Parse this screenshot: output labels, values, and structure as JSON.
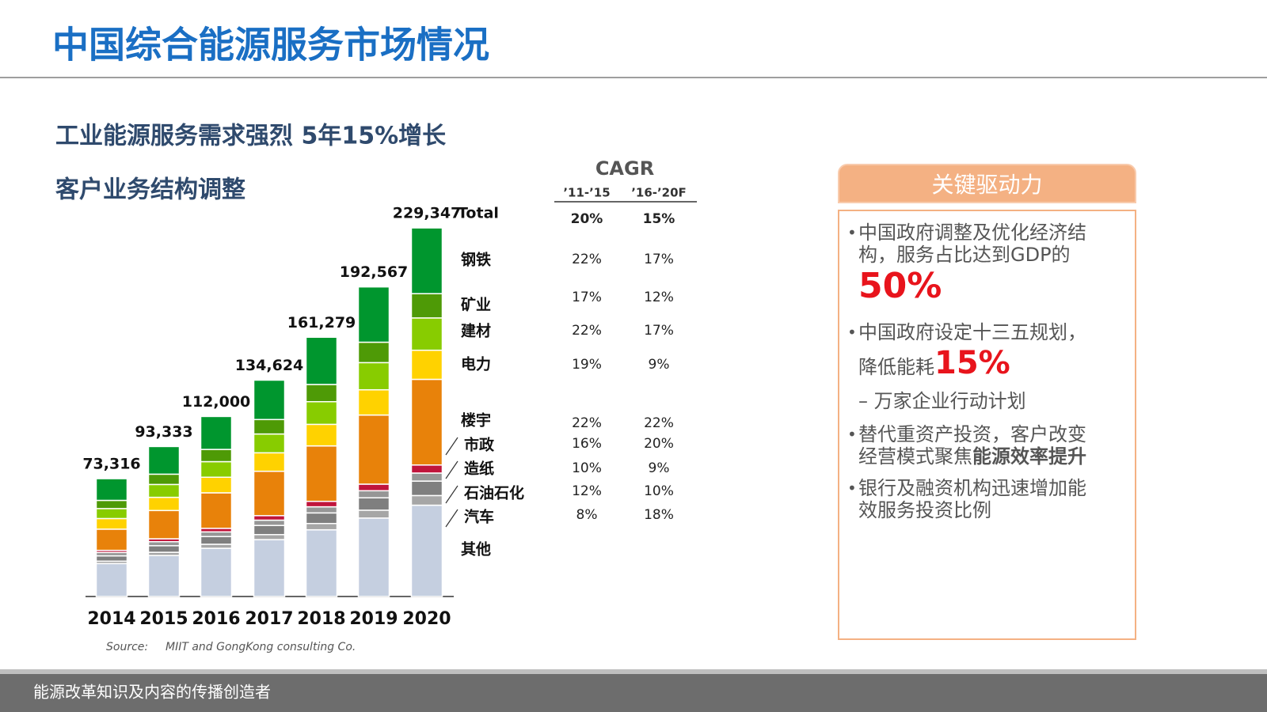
{
  "header": {
    "title": "中国综合能源服务市场情况",
    "subtitle1": "工业能源服务需求强烈 5年15%增长",
    "subtitle2": "客户业务结构调整"
  },
  "chart_data": {
    "type": "stacked_bar",
    "categories": [
      "2014",
      "2015",
      "2016",
      "2017",
      "2018",
      "2019",
      "2020"
    ],
    "series": [
      {
        "name": "其他",
        "color": "#c5cfe0",
        "values": [
          20500,
          25500,
          30000,
          35400,
          41500,
          48800,
          56800
        ]
      },
      {
        "name": "汽车",
        "color": "#a6a6a6",
        "values": [
          1500,
          2000,
          2500,
          3100,
          3900,
          4900,
          6000
        ]
      },
      {
        "name": "石油石化",
        "color": "#7f7f7f",
        "values": [
          3300,
          4100,
          4800,
          5700,
          6600,
          7700,
          9000
        ]
      },
      {
        "name": "造纸",
        "color": "#969696",
        "values": [
          2100,
          2500,
          2900,
          3300,
          3800,
          4400,
          5000
        ]
      },
      {
        "name": "市政",
        "color": "#c0143c",
        "values": [
          1300,
          1800,
          2200,
          2800,
          3400,
          4100,
          5000
        ]
      },
      {
        "name": "楼宇",
        "color": "#e8820a",
        "values": [
          13200,
          17600,
          22100,
          27600,
          34500,
          43000,
          53300
        ]
      },
      {
        "name": "电力",
        "color": "#ffd200",
        "values": [
          6600,
          8200,
          9700,
          11500,
          13400,
          15700,
          18100
        ]
      },
      {
        "name": "建材",
        "color": "#88cc00",
        "values": [
          6200,
          8000,
          9700,
          11700,
          14100,
          16900,
          20100
        ]
      },
      {
        "name": "矿业",
        "color": "#4e9a06",
        "values": [
          5100,
          6400,
          7600,
          9000,
          10700,
          12700,
          15100
        ]
      },
      {
        "name": "钢铁",
        "color": "#00962e",
        "values": [
          13500,
          17200,
          20500,
          24500,
          29400,
          34400,
          40900
        ]
      }
    ],
    "totals": [
      73316,
      93333,
      112000,
      134624,
      161279,
      192567,
      229347
    ],
    "total_labels": [
      "73,316",
      "93,333",
      "112,000",
      "134,624",
      "161,279",
      "192,567",
      "229,347"
    ],
    "total_name": "Total",
    "source_label": "Source:",
    "source": "MIIT and GongKong consulting Co."
  },
  "cagr": {
    "title": "CAGR",
    "columns": [
      "’11-’15",
      "’16-’20F"
    ],
    "rows": [
      [
        "20%",
        "15%"
      ],
      [
        "22%",
        "17%"
      ],
      [
        "17%",
        "12%"
      ],
      [
        "22%",
        "17%"
      ],
      [
        "19%",
        "9%"
      ],
      [
        "22%",
        "22%"
      ],
      [
        "16%",
        "20%"
      ],
      [
        "10%",
        "9%"
      ],
      [
        "12%",
        "10%"
      ],
      [
        "8%",
        "18%"
      ]
    ]
  },
  "key_drivers": {
    "title": "关键驱动力",
    "item1": [
      "中国政府调整及优化经济结",
      "构，服务占比达到GDP的",
      "50%"
    ],
    "item2": [
      "中国政府设定十三五规划，",
      "降低能耗",
      "15%"
    ],
    "item2_sub": "– 万家企业行动计划",
    "item3": [
      "替代重资产投资，客户改变",
      "经营模式聚焦",
      "能源效率提升"
    ],
    "item4": [
      "银行及融资机构迅速增加能",
      "效服务投资比例"
    ]
  },
  "footer": "能源改革知识及内容的传播创造者"
}
